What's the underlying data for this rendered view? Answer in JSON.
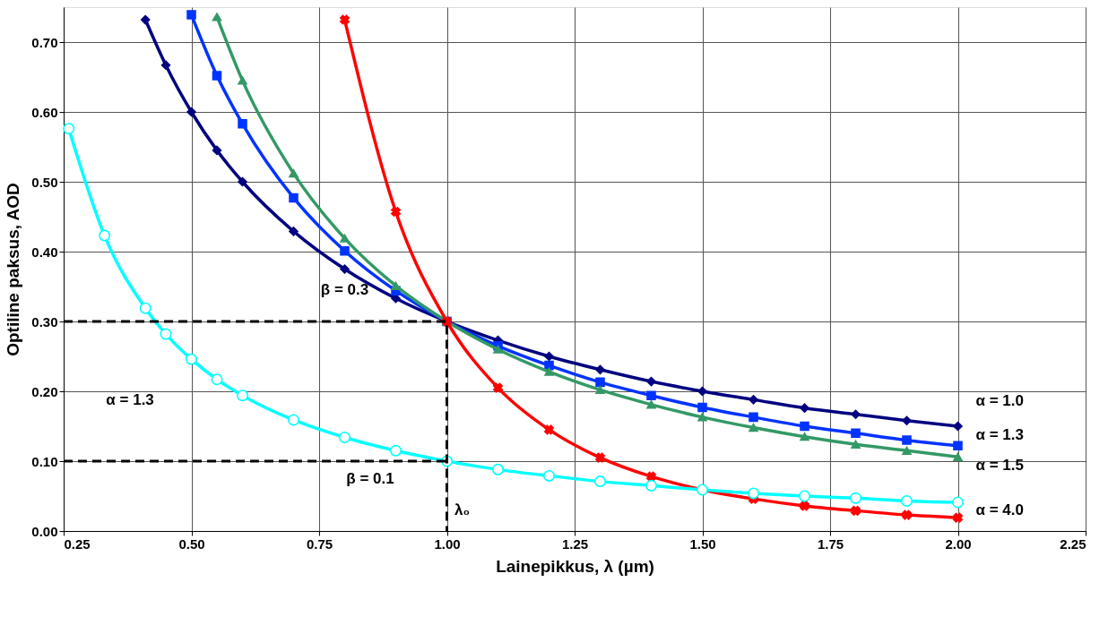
{
  "chart_data": {
    "type": "line",
    "xlabel": "Lainepikkus, λ (µm)",
    "ylabel": "Optiline paksus, AOD",
    "xlim": [
      0.25,
      2.25
    ],
    "ylim": [
      0,
      0.75
    ],
    "xticks": [
      {
        "value": 0.25,
        "label": "0.25"
      },
      {
        "value": 0.5,
        "label": "0.50"
      },
      {
        "value": 0.75,
        "label": "0.75"
      },
      {
        "value": 1.0,
        "label": "1.00"
      },
      {
        "value": 1.25,
        "label": "1.25"
      },
      {
        "value": 1.5,
        "label": "1.50"
      },
      {
        "value": 1.75,
        "label": "1.75"
      },
      {
        "value": 2.0,
        "label": "2.00"
      },
      {
        "value": 2.25,
        "label": "2.25"
      }
    ],
    "yticks": [
      {
        "value": 0,
        "label": "0.00"
      },
      {
        "value": 0.1,
        "label": "0.10"
      },
      {
        "value": 0.2,
        "label": "0.20"
      },
      {
        "value": 0.3,
        "label": "0.30"
      },
      {
        "value": 0.4,
        "label": "0.40"
      },
      {
        "value": 0.5,
        "label": "0.50"
      },
      {
        "value": 0.6,
        "label": "0.60"
      },
      {
        "value": 0.7,
        "label": "0.70"
      }
    ],
    "grid": true,
    "series": [
      {
        "name": "α = 1.0",
        "color": "#000080",
        "marker": "diamond",
        "x": [
          0.41,
          0.45,
          0.5,
          0.55,
          0.6,
          0.7,
          0.8,
          0.9,
          1.0,
          1.1,
          1.2,
          1.3,
          1.4,
          1.5,
          1.6,
          1.7,
          1.8,
          1.9,
          2.0
        ],
        "values": [
          0.732,
          0.667,
          0.6,
          0.545,
          0.5,
          0.429,
          0.375,
          0.333,
          0.3,
          0.273,
          0.25,
          0.231,
          0.214,
          0.2,
          0.188,
          0.176,
          0.167,
          0.158,
          0.15
        ]
      },
      {
        "name": "α = 1.3",
        "color": "#0033ff",
        "marker": "square",
        "x": [
          0.5,
          0.55,
          0.6,
          0.7,
          0.8,
          0.9,
          1.0,
          1.1,
          1.2,
          1.3,
          1.4,
          1.5,
          1.6,
          1.7,
          1.8,
          1.9,
          2.0
        ],
        "values": [
          0.739,
          0.652,
          0.583,
          0.477,
          0.401,
          0.344,
          0.3,
          0.265,
          0.237,
          0.213,
          0.194,
          0.177,
          0.163,
          0.15,
          0.14,
          0.13,
          0.122
        ]
      },
      {
        "name": "α = 1.5",
        "color": "#339966",
        "marker": "triangle",
        "x": [
          0.55,
          0.6,
          0.7,
          0.8,
          0.9,
          1.0,
          1.1,
          1.2,
          1.3,
          1.4,
          1.5,
          1.6,
          1.7,
          1.8,
          1.9,
          2.0
        ],
        "values": [
          0.736,
          0.645,
          0.512,
          0.419,
          0.351,
          0.3,
          0.26,
          0.228,
          0.202,
          0.181,
          0.163,
          0.148,
          0.135,
          0.124,
          0.115,
          0.106
        ]
      },
      {
        "name": "α = 4.0",
        "color": "#ff0000",
        "marker": "cross",
        "x": [
          0.8,
          0.9,
          1.0,
          1.1,
          1.2,
          1.3,
          1.4,
          1.5,
          1.6,
          1.7,
          1.8,
          1.9,
          2.0
        ],
        "values": [
          0.732,
          0.457,
          0.3,
          0.205,
          0.145,
          0.105,
          0.078,
          0.059,
          0.046,
          0.036,
          0.029,
          0.023,
          0.019
        ]
      },
      {
        "color": "#00ffff",
        "marker": "circle",
        "x": [
          0.26,
          0.33,
          0.41,
          0.45,
          0.5,
          0.55,
          0.6,
          0.7,
          0.8,
          0.9,
          1.0,
          1.1,
          1.2,
          1.3,
          1.4,
          1.5,
          1.6,
          1.7,
          1.8,
          1.9,
          2.0
        ],
        "values": [
          0.576,
          0.423,
          0.319,
          0.282,
          0.246,
          0.217,
          0.194,
          0.159,
          0.134,
          0.115,
          0.1,
          0.088,
          0.079,
          0.071,
          0.065,
          0.059,
          0.054,
          0.05,
          0.047,
          0.043,
          0.041
        ]
      },
      {
        "color": "#000000",
        "marker": "none",
        "line_style": "dashed",
        "x": [
          0.25,
          1.0,
          1.0
        ],
        "values": [
          0.3,
          0.3,
          0
        ]
      },
      {
        "color": "#000000",
        "marker": "none",
        "line_style": "dashed",
        "x": [
          0.25,
          1.0
        ],
        "values": [
          0.1,
          0.1
        ]
      }
    ],
    "annotations": [
      "β = 0.3",
      "β = 0.1",
      "α = 1.3",
      "λ₀"
    ]
  }
}
